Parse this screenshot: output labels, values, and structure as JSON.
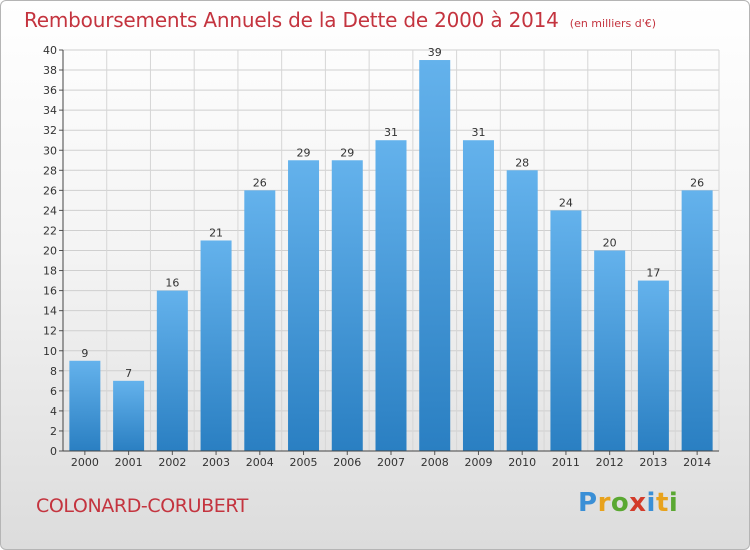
{
  "header": {
    "title": "Remboursements Annuels de la Dette de 2000 à 2014",
    "subtitle": "(en milliers d'€)"
  },
  "footer": {
    "commune": "COLONARD-CORUBERT",
    "brand": "Proxiti",
    "brand_letters": [
      "P",
      "r",
      "o",
      "x",
      "i",
      "t",
      "i"
    ],
    "brand_colors": [
      "#3a8fd6",
      "#e8a21c",
      "#5aa832",
      "#d33b2a",
      "#3a8fd6",
      "#e8a21c",
      "#5aa832"
    ]
  },
  "colors": {
    "bar_top": "#64b2ec",
    "bar_bottom": "#2a7fc2",
    "title": "#c4343f"
  },
  "chart_data": {
    "type": "bar",
    "title": "Remboursements Annuels de la Dette de 2000 à 2014",
    "subtitle": "(en milliers d'€)",
    "categories": [
      "2000",
      "2001",
      "2002",
      "2003",
      "2004",
      "2005",
      "2006",
      "2007",
      "2008",
      "2009",
      "2010",
      "2011",
      "2012",
      "2013",
      "2014"
    ],
    "values": [
      9,
      7,
      16,
      21,
      26,
      29,
      29,
      31,
      39,
      31,
      28,
      24,
      20,
      17,
      26
    ],
    "ylim": [
      0,
      40
    ],
    "yticks": [
      0,
      2,
      4,
      6,
      8,
      10,
      12,
      14,
      16,
      18,
      20,
      22,
      24,
      26,
      28,
      30,
      32,
      34,
      36,
      38,
      40
    ],
    "grid": true,
    "legend": "none"
  }
}
